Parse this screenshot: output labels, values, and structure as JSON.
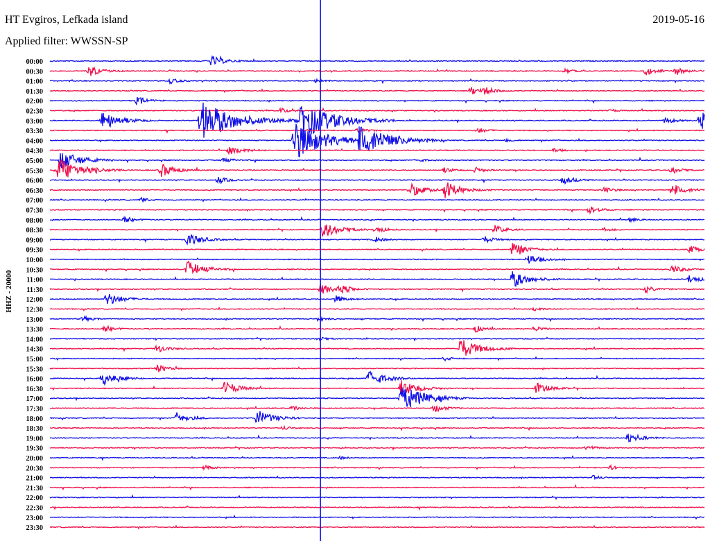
{
  "header": {
    "station": "HT Evgiros, Lefkada island",
    "filter": "Applied filter: WWSSN-SP",
    "date": "2019-05-16",
    "channel": "HHZ - 20000"
  },
  "chart_data": {
    "type": "line",
    "title": "HT Evgiros, Lefkada island",
    "ylabel": "HHZ - 20000",
    "x_range_minutes": [
      0,
      30
    ],
    "row_labels": [
      "00:00",
      "00:30",
      "01:00",
      "01:30",
      "02:00",
      "02:30",
      "03:00",
      "03:30",
      "04:00",
      "04:30",
      "05:00",
      "05:30",
      "06:00",
      "06:30",
      "07:00",
      "07:30",
      "08:00",
      "08:30",
      "09:00",
      "09:30",
      "10:00",
      "10:30",
      "11:00",
      "11:30",
      "12:00",
      "12:30",
      "13:00",
      "13:30",
      "14:00",
      "14:30",
      "15:00",
      "15:30",
      "16:00",
      "16:30",
      "17:00",
      "17:30",
      "18:00",
      "18:30",
      "19:00",
      "19:30",
      "20:00",
      "20:30",
      "21:00",
      "21:30",
      "22:00",
      "22:30",
      "23:00",
      "23:30"
    ],
    "colors": [
      "#1010e8",
      "#f0104a"
    ],
    "marker_minute": 12.4,
    "events": [
      [
        0,
        7.4,
        8
      ],
      [
        1,
        1.8,
        8
      ],
      [
        1,
        27.3,
        6
      ],
      [
        1,
        28.7,
        6
      ],
      [
        1,
        23.6,
        3
      ],
      [
        2,
        5.5,
        4
      ],
      [
        2,
        12.2,
        3
      ],
      [
        3,
        19.3,
        6
      ],
      [
        3,
        19.9,
        5
      ],
      [
        4,
        4,
        6
      ],
      [
        5,
        10.6,
        4
      ],
      [
        5,
        25.7,
        2
      ],
      [
        6,
        2.4,
        14
      ],
      [
        6,
        6.9,
        30
      ],
      [
        6,
        11.4,
        30
      ],
      [
        6,
        29.8,
        15
      ],
      [
        6,
        28.2,
        5
      ],
      [
        7,
        14.1,
        4
      ],
      [
        7,
        19.6,
        4
      ],
      [
        8,
        11.2,
        28
      ],
      [
        8,
        14.2,
        25
      ],
      [
        8,
        20.9,
        2
      ],
      [
        9,
        8.2,
        8
      ],
      [
        9,
        23.1,
        3
      ],
      [
        10,
        0.5,
        15
      ],
      [
        10,
        7.9,
        4
      ],
      [
        10,
        16.8,
        3
      ],
      [
        11,
        0.4,
        18
      ],
      [
        11,
        5.1,
        10
      ],
      [
        11,
        18.1,
        4
      ],
      [
        11,
        19.5,
        4
      ],
      [
        11,
        28.5,
        5
      ],
      [
        12,
        7.7,
        5
      ],
      [
        12,
        23.5,
        6
      ],
      [
        13,
        16.5,
        10
      ],
      [
        13,
        18.1,
        12
      ],
      [
        13,
        25.4,
        4
      ],
      [
        13,
        28.5,
        10
      ],
      [
        14,
        4.2,
        3
      ],
      [
        15,
        24.7,
        6
      ],
      [
        16,
        3.4,
        5
      ],
      [
        16,
        26.6,
        3
      ],
      [
        17,
        12.5,
        12
      ],
      [
        17,
        14.9,
        5
      ],
      [
        17,
        20.4,
        6
      ],
      [
        17,
        25.4,
        3
      ],
      [
        18,
        6.3,
        10
      ],
      [
        18,
        14.9,
        4
      ],
      [
        18,
        19.9,
        5
      ],
      [
        19,
        21.2,
        10
      ],
      [
        19,
        29.3,
        6
      ],
      [
        20,
        21.9,
        8
      ],
      [
        21,
        6.3,
        12
      ],
      [
        21,
        28.5,
        6
      ],
      [
        22,
        21.2,
        12
      ],
      [
        22,
        29.3,
        6
      ],
      [
        23,
        12.4,
        8
      ],
      [
        23,
        13.3,
        6
      ],
      [
        23,
        27.3,
        5
      ],
      [
        24,
        2.6,
        10
      ],
      [
        24,
        13.1,
        5
      ],
      [
        25,
        22.2,
        3
      ],
      [
        26,
        1.5,
        4
      ],
      [
        26,
        12.3,
        3
      ],
      [
        27,
        2.5,
        5
      ],
      [
        27,
        19.5,
        5
      ],
      [
        27,
        22.2,
        4
      ],
      [
        28,
        12.3,
        3
      ],
      [
        29,
        4.9,
        6
      ],
      [
        29,
        18.8,
        15
      ],
      [
        30,
        18.1,
        3
      ],
      [
        31,
        4.9,
        6
      ],
      [
        32,
        2.4,
        10
      ],
      [
        32,
        14.6,
        12
      ],
      [
        33,
        8,
        10
      ],
      [
        33,
        16.1,
        12
      ],
      [
        33,
        22.3,
        8
      ],
      [
        34,
        16.1,
        20
      ],
      [
        35,
        11.1,
        4
      ],
      [
        35,
        17.6,
        6
      ],
      [
        36,
        5.8,
        8
      ],
      [
        36,
        9.5,
        12
      ],
      [
        37,
        10.7,
        3
      ],
      [
        38,
        26.5,
        8
      ],
      [
        39,
        24.6,
        4
      ],
      [
        40,
        13.3,
        2
      ],
      [
        41,
        7.1,
        4
      ],
      [
        41,
        25.7,
        3
      ],
      [
        42,
        24.9,
        3
      ]
    ]
  }
}
